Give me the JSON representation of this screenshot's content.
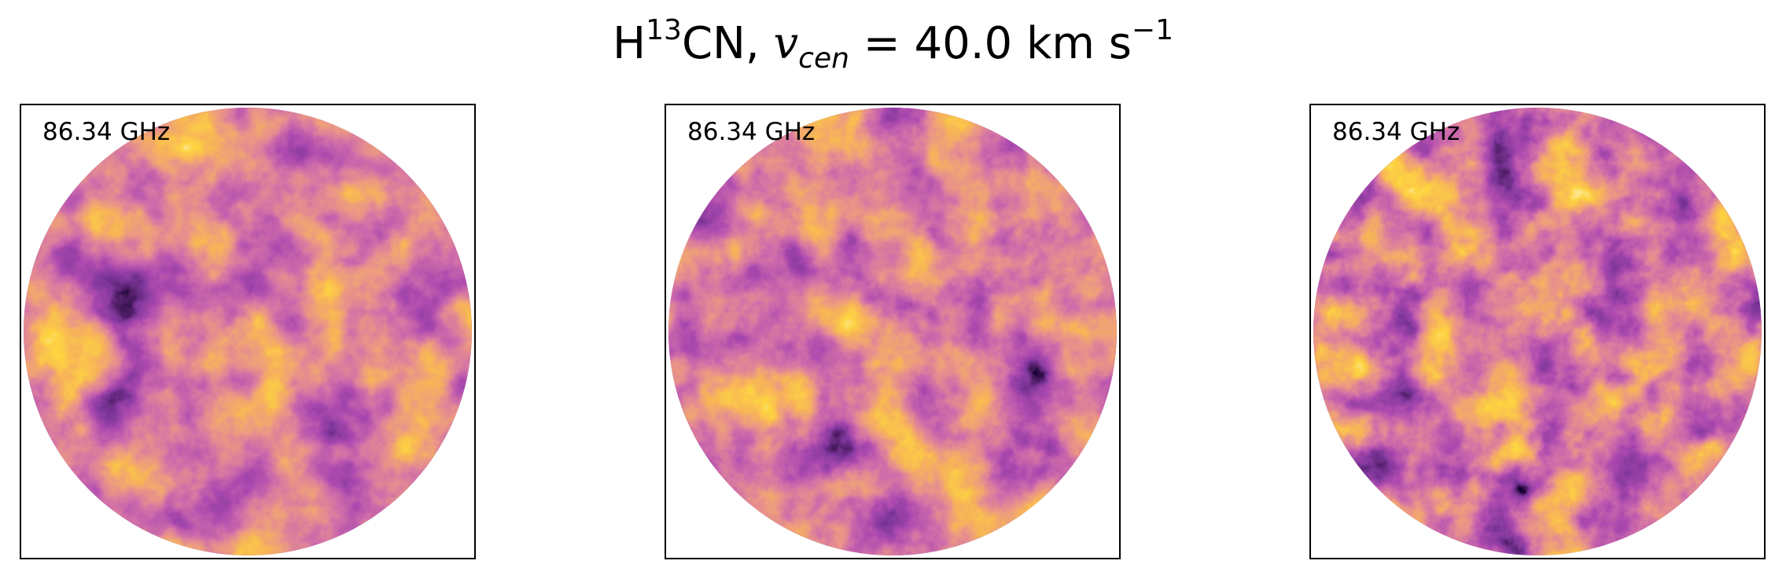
{
  "figure": {
    "title": {
      "molecule_prefix": "H",
      "isotope": "13",
      "molecule_suffix": "CN, ",
      "variable": "v",
      "variable_subscript": "cen",
      "equals_value": " = 40.0 km s",
      "unit_exponent": "−1"
    }
  },
  "chart_data": [
    {
      "type": "heatmap",
      "annotation": "86.34 GHz",
      "colormap": "inferno",
      "footprint": "circle",
      "axes_ticks": false
    },
    {
      "type": "heatmap",
      "annotation": "86.34 GHz",
      "colormap": "inferno",
      "footprint": "circle",
      "axes_ticks": false
    },
    {
      "type": "heatmap",
      "annotation": "86.34 GHz",
      "colormap": "inferno",
      "footprint": "circle",
      "axes_ticks": false
    }
  ]
}
